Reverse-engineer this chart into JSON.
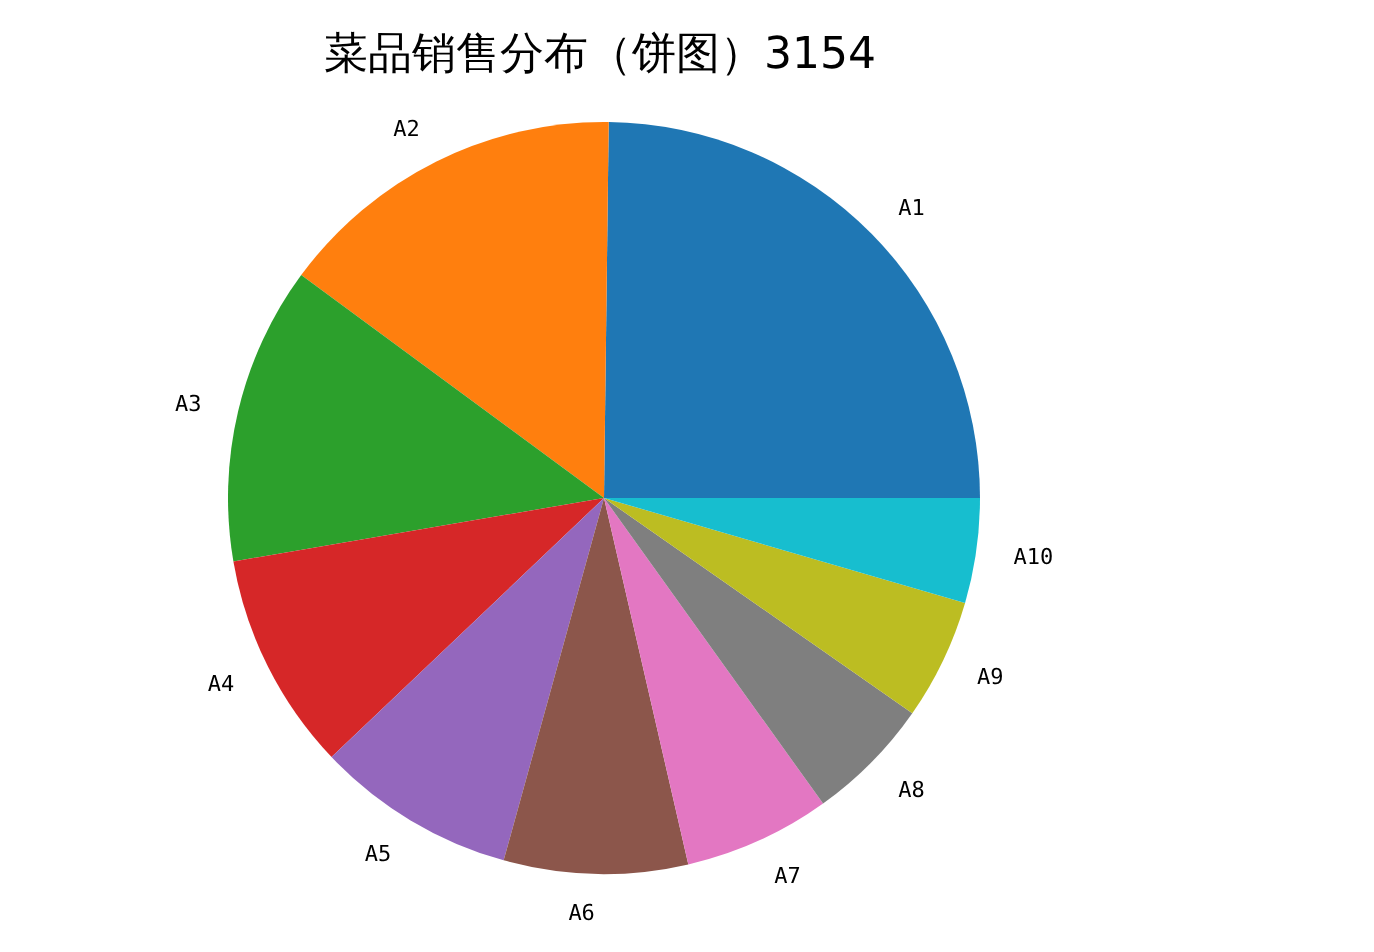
{
  "chart_data": {
    "type": "pie",
    "title": "菜品销售分布（饼图）3154",
    "categories": [
      "A1",
      "A2",
      "A3",
      "A4",
      "A5",
      "A6",
      "A7",
      "A8",
      "A9",
      "A10"
    ],
    "values": [
      24.8,
      15.1,
      12.8,
      9.4,
      8.6,
      7.9,
      6.3,
      5.4,
      5.2,
      4.5
    ],
    "colors": [
      "#1f77b4",
      "#ff7f0e",
      "#2ca02c",
      "#d62728",
      "#9467bd",
      "#8c564b",
      "#e377c2",
      "#7f7f7f",
      "#bcbd22",
      "#17becf"
    ],
    "legend": false
  }
}
